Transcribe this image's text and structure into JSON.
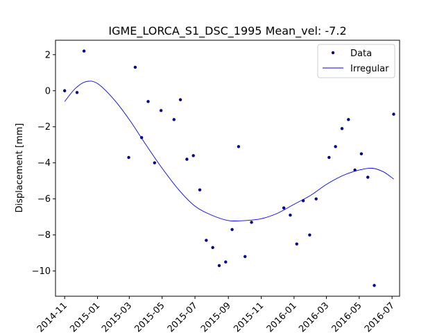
{
  "chart_data": {
    "type": "scatter",
    "title": "IGME_LORCA_S1_DSC_1995     Mean_vel: -7.2",
    "xlabel": "",
    "ylabel": "Displacement [mm]",
    "xlim": [
      "2014-10-15",
      "2016-07-15"
    ],
    "ylim": [
      -11.4,
      2.8
    ],
    "x_ticks": [
      "2014-11",
      "2015-01",
      "2015-03",
      "2015-05",
      "2015-07",
      "2015-09",
      "2015-11",
      "2016-01",
      "2016-03",
      "2016-05",
      "2016-07"
    ],
    "y_ticks": [
      2,
      0,
      -2,
      -4,
      -6,
      -8,
      -10
    ],
    "y_tick_labels": [
      "2",
      "0",
      "−2",
      "−4",
      "−6",
      "−8",
      "−10"
    ],
    "grid": false,
    "legend_position": "top-right",
    "series": [
      {
        "name": "Data",
        "kind": "points",
        "color": "#00008b",
        "points": [
          {
            "x": "2014-11-01",
            "y": 0.0
          },
          {
            "x": "2014-11-24",
            "y": -0.1
          },
          {
            "x": "2014-12-07",
            "y": 2.2
          },
          {
            "x": "2015-02-28",
            "y": -3.7
          },
          {
            "x": "2015-03-12",
            "y": 1.3
          },
          {
            "x": "2015-03-24",
            "y": -2.6
          },
          {
            "x": "2015-04-05",
            "y": -0.6
          },
          {
            "x": "2015-04-17",
            "y": -4.0
          },
          {
            "x": "2015-04-29",
            "y": -1.1
          },
          {
            "x": "2015-05-23",
            "y": -1.6
          },
          {
            "x": "2015-06-04",
            "y": -0.5
          },
          {
            "x": "2015-06-16",
            "y": -3.8
          },
          {
            "x": "2015-06-28",
            "y": -3.6
          },
          {
            "x": "2015-07-10",
            "y": -5.5
          },
          {
            "x": "2015-07-22",
            "y": -8.3
          },
          {
            "x": "2015-08-03",
            "y": -8.7
          },
          {
            "x": "2015-08-15",
            "y": -9.7
          },
          {
            "x": "2015-08-27",
            "y": -9.5
          },
          {
            "x": "2015-09-08",
            "y": -7.7
          },
          {
            "x": "2015-09-20",
            "y": -3.1
          },
          {
            "x": "2015-10-02",
            "y": -9.2
          },
          {
            "x": "2015-10-14",
            "y": -7.3
          },
          {
            "x": "2015-12-13",
            "y": -6.5
          },
          {
            "x": "2015-12-25",
            "y": -6.9
          },
          {
            "x": "2016-01-06",
            "y": -8.5
          },
          {
            "x": "2016-01-18",
            "y": -6.1
          },
          {
            "x": "2016-01-30",
            "y": -8.0
          },
          {
            "x": "2016-02-11",
            "y": -6.0
          },
          {
            "x": "2016-03-06",
            "y": -3.7
          },
          {
            "x": "2016-03-18",
            "y": -3.1
          },
          {
            "x": "2016-03-30",
            "y": -2.1
          },
          {
            "x": "2016-04-11",
            "y": -1.6
          },
          {
            "x": "2016-04-23",
            "y": -4.4
          },
          {
            "x": "2016-05-05",
            "y": -3.5
          },
          {
            "x": "2016-05-17",
            "y": -4.8
          },
          {
            "x": "2016-05-29",
            "y": -10.8
          },
          {
            "x": "2016-07-04",
            "y": -1.3
          }
        ]
      },
      {
        "name": "Irregular",
        "kind": "line",
        "color": "#0000ff",
        "points": [
          {
            "x": "2014-11-01",
            "y": -0.6
          },
          {
            "x": "2014-11-20",
            "y": 0.1
          },
          {
            "x": "2014-12-10",
            "y": 0.5
          },
          {
            "x": "2015-01-01",
            "y": 0.4
          },
          {
            "x": "2015-02-01",
            "y": -0.5
          },
          {
            "x": "2015-03-01",
            "y": -1.6
          },
          {
            "x": "2015-04-01",
            "y": -3.0
          },
          {
            "x": "2015-05-01",
            "y": -4.3
          },
          {
            "x": "2015-06-01",
            "y": -5.5
          },
          {
            "x": "2015-07-01",
            "y": -6.4
          },
          {
            "x": "2015-08-01",
            "y": -6.9
          },
          {
            "x": "2015-09-01",
            "y": -7.2
          },
          {
            "x": "2015-10-01",
            "y": -7.2
          },
          {
            "x": "2015-11-01",
            "y": -7.1
          },
          {
            "x": "2015-12-01",
            "y": -6.8
          },
          {
            "x": "2016-01-01",
            "y": -6.3
          },
          {
            "x": "2016-02-01",
            "y": -5.8
          },
          {
            "x": "2016-03-01",
            "y": -5.2
          },
          {
            "x": "2016-04-01",
            "y": -4.7
          },
          {
            "x": "2016-05-01",
            "y": -4.4
          },
          {
            "x": "2016-05-25",
            "y": -4.3
          },
          {
            "x": "2016-06-15",
            "y": -4.5
          },
          {
            "x": "2016-07-04",
            "y": -4.9
          }
        ]
      }
    ]
  }
}
